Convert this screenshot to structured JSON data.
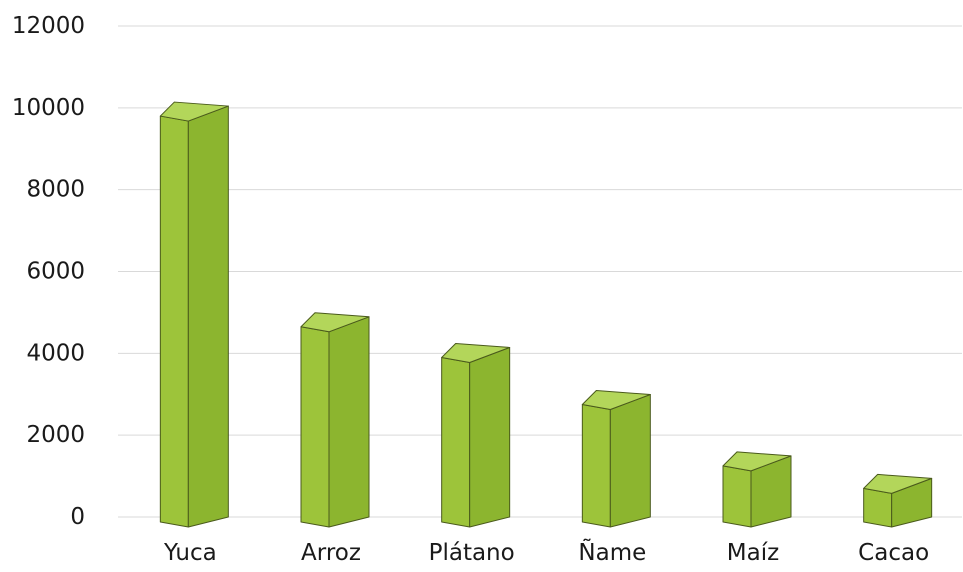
{
  "chart_data": {
    "type": "bar",
    "style": "3d-column",
    "title": "",
    "xlabel": "",
    "ylabel": "",
    "categories": [
      "Yuca",
      "Arroz",
      "Plátano",
      "Ñame",
      "Maíz",
      "Cacao"
    ],
    "values": [
      9750,
      4600,
      3850,
      2700,
      1200,
      650
    ],
    "ylim": [
      0,
      12000
    ],
    "yticks": [
      0,
      2000,
      4000,
      6000,
      8000,
      10000,
      12000
    ],
    "grid": true,
    "legend": "none",
    "colors": {
      "front": "#9dc43a",
      "side": "#8cb52f",
      "top": "#b3d65a",
      "outline": "#4a5a1c",
      "grid": "#d9d9d9",
      "tick_text": "#1a1a1a"
    }
  }
}
